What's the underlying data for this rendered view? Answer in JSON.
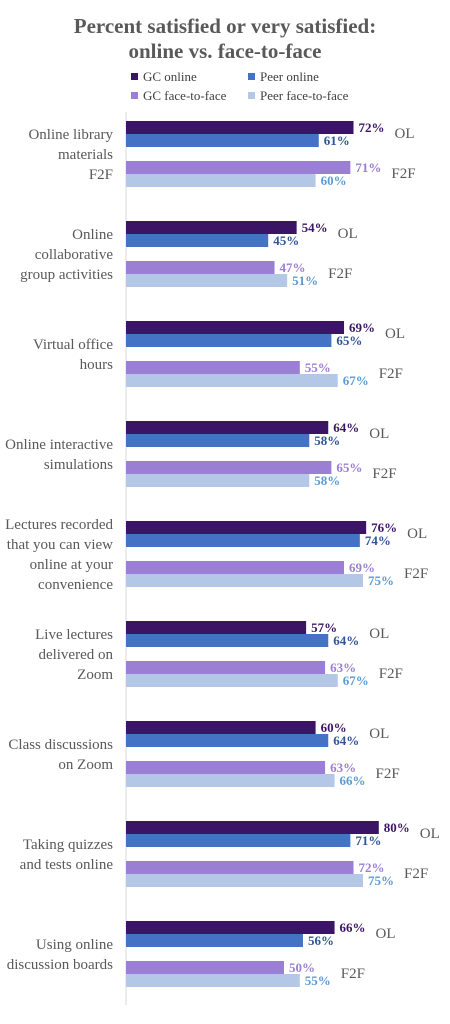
{
  "chart_data": {
    "type": "bar",
    "orientation": "horizontal",
    "title_line1": "Percent satisfied or very satisfied:",
    "title_line2": "online vs. face-to-face",
    "xlim": [
      0,
      100
    ],
    "legend": [
      {
        "name": "GC online",
        "color": "#3b1466"
      },
      {
        "name": "Peer online",
        "color": "#4472c4"
      },
      {
        "name": "GC face-to-face",
        "color": "#9b7fd4"
      },
      {
        "name": "Peer face-to-face",
        "color": "#b4c7e7"
      }
    ],
    "label_colors": [
      "#3b1466",
      "#2f5597",
      "#9b7fd4",
      "#5b9bd5"
    ],
    "group_labels": [
      "OL",
      "F2F"
    ],
    "categories": [
      {
        "label": "Online library materials F2F",
        "lines": [
          "Online library",
          "materials",
          "F2F"
        ],
        "values": [
          72,
          61,
          71,
          60
        ]
      },
      {
        "label": "Online collaborative group activities",
        "lines": [
          "Online",
          "collaborative",
          "group activities"
        ],
        "values": [
          54,
          45,
          47,
          51
        ]
      },
      {
        "label": "Virtual office hours",
        "lines": [
          "Virtual office",
          "hours"
        ],
        "values": [
          69,
          65,
          55,
          67
        ]
      },
      {
        "label": "Online interactive simulations",
        "lines": [
          "Online interactive",
          "simulations"
        ],
        "values": [
          64,
          58,
          65,
          58
        ]
      },
      {
        "label": "Lectures recorded that you can view online at your convenience",
        "lines": [
          "Lectures recorded",
          "that you can view",
          "online at your",
          "convenience"
        ],
        "values": [
          76,
          74,
          69,
          75
        ]
      },
      {
        "label": "Live lectures delivered on Zoom",
        "lines": [
          "Live lectures",
          "delivered on",
          "Zoom"
        ],
        "values": [
          57,
          64,
          63,
          67
        ]
      },
      {
        "label": "Class discussions on Zoom",
        "lines": [
          "Class discussions",
          "on Zoom"
        ],
        "values": [
          60,
          64,
          63,
          66
        ]
      },
      {
        "label": "Taking quizzes and tests online",
        "lines": [
          "Taking quizzes",
          "and tests online"
        ],
        "values": [
          80,
          71,
          72,
          75
        ]
      },
      {
        "label": "Using online discussion boards",
        "lines": [
          "Using online",
          "discussion boards"
        ],
        "values": [
          66,
          56,
          50,
          55
        ]
      }
    ]
  }
}
